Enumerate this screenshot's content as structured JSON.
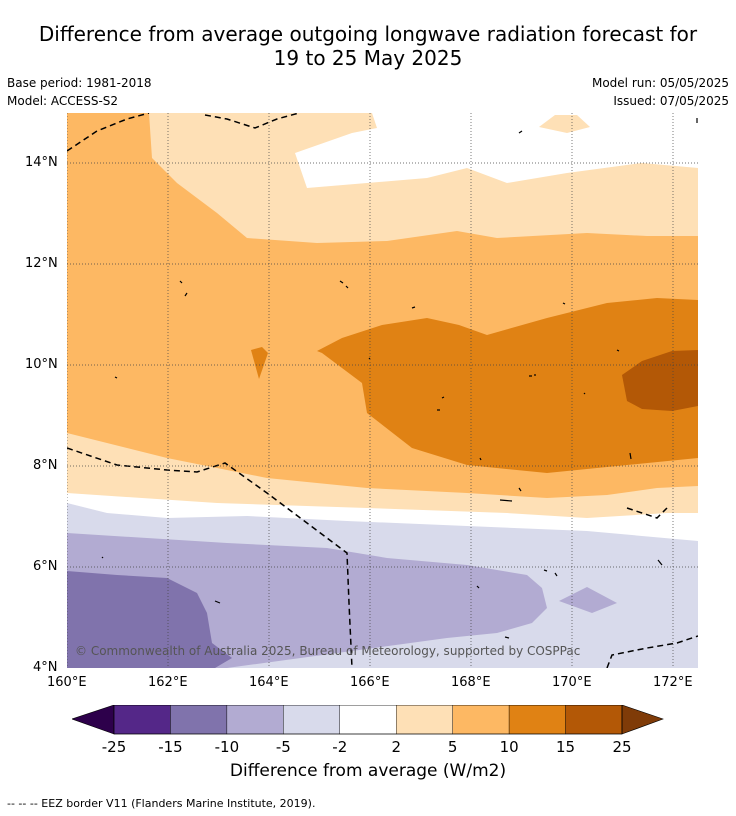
{
  "title_line1": "Difference from average outgoing longwave radiation forecast for",
  "title_line2": "19 to 25 May 2025",
  "base_period": "Base period: 1981-2018",
  "model": "Model: ACCESS-S2",
  "model_run": "Model run: 05/05/2025",
  "issued": "Issued: 07/05/2025",
  "copyright": "© Commonwealth of Australia 2025, Bureau of Meteorology, supported by COSPPac",
  "lat_labels": [
    "14°N",
    "12°N",
    "10°N",
    "8°N",
    "6°N",
    "4°N"
  ],
  "lon_labels": [
    "160°E",
    "162°E",
    "164°E",
    "166°E",
    "168°E",
    "170°E",
    "172°E"
  ],
  "colorbar": {
    "title": "Difference from average (W/m2)",
    "ticks": [
      "-25",
      "-15",
      "-10",
      "-5",
      "-2",
      "2",
      "5",
      "10",
      "15",
      "25"
    ],
    "under_color": "#2d004b",
    "over_color": "#7f3b08",
    "colors": [
      "#542788",
      "#8073ac",
      "#b2abd2",
      "#d8daeb",
      "#ffffff",
      "#fee0b6",
      "#fdb863",
      "#e08214",
      "#b35806"
    ]
  },
  "footnote": "--  --  -- EEZ border V11 (Flanders Marine Institute, 2019)."
}
